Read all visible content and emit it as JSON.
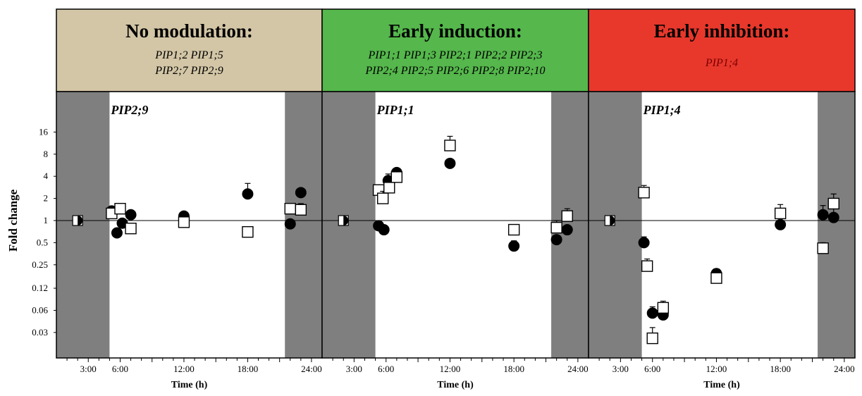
{
  "colors": {
    "no_modulation": "#d3c6a6",
    "early_induction": "#55b74c",
    "early_inhibition": "#e8382c",
    "dark_shade": "#7f7f7f"
  },
  "headers": [
    {
      "title": "No modulation:",
      "gene_lines": [
        "PIP1;2  PIP1;5",
        "PIP2;7  PIP2;9"
      ]
    },
    {
      "title": "Early induction:",
      "gene_lines": [
        "PIP1;1  PIP1;3  PIP2;1  PIP2;2  PIP2;3",
        "PIP2;4  PIP2;5  PIP2;6  PIP2;8  PIP2;10"
      ]
    },
    {
      "title": "Early inhibition:",
      "gene_lines": [
        "PIP1;4"
      ]
    }
  ],
  "chart_data": [
    {
      "type": "scatter",
      "title": "PIP2;9",
      "xlabel": "Time (h)",
      "ylabel": "Fold change",
      "xlim": [
        0,
        25
      ],
      "ylim": [
        0.015,
        32
      ],
      "y_scale": "log2",
      "x_ticks": [
        "3:00",
        "6:00",
        "12:00",
        "18:00",
        "24:00"
      ],
      "y_ticks": [
        "0.03",
        "0.06",
        "0.12",
        "0.25",
        "0.5",
        "1",
        "2",
        "4",
        "8",
        "16"
      ],
      "dark_periods": [
        [
          0,
          5
        ],
        [
          21.5,
          25
        ]
      ],
      "series": [
        {
          "marker": "filled-circle",
          "points": [
            {
              "x": 5.2,
              "y": 1.35
            },
            {
              "x": 5.7,
              "y": 0.68,
              "err": 0.1
            },
            {
              "x": 6.2,
              "y": 0.92,
              "err": 0.1
            },
            {
              "x": 7.0,
              "y": 1.2,
              "err": 0.15
            },
            {
              "x": 12.0,
              "y": 1.15,
              "err": 0.15
            },
            {
              "x": 18.0,
              "y": 2.3,
              "err": 0.9
            },
            {
              "x": 22.0,
              "y": 0.9,
              "err": 0.1
            },
            {
              "x": 23.0,
              "y": 2.4,
              "err": 0.3
            }
          ]
        },
        {
          "marker": "open-square",
          "points": [
            {
              "x": 5.2,
              "y": 1.25
            },
            {
              "x": 6.0,
              "y": 1.45,
              "err": 0.25
            },
            {
              "x": 7.0,
              "y": 0.78,
              "err": 0.1
            },
            {
              "x": 12.0,
              "y": 0.95,
              "err": 0.1
            },
            {
              "x": 18.0,
              "y": 0.7,
              "err": 0.12
            },
            {
              "x": 22.0,
              "y": 1.45,
              "err": 0.2
            },
            {
              "x": 23.0,
              "y": 1.4,
              "err": 0.3
            }
          ]
        },
        {
          "marker": "half-circle",
          "points": [
            {
              "x": 2.0,
              "y": 1.0
            }
          ]
        }
      ]
    },
    {
      "type": "scatter",
      "title": "PIP1;1",
      "xlabel": "Time (h)",
      "ylabel": "Fold change",
      "xlim": [
        0,
        25
      ],
      "ylim": [
        0.015,
        32
      ],
      "y_scale": "log2",
      "x_ticks": [
        "3:00",
        "6:00",
        "12:00",
        "18:00",
        "24:00"
      ],
      "y_ticks": [
        "0.03",
        "0.06",
        "0.12",
        "0.25",
        "0.5",
        "1",
        "2",
        "4",
        "8",
        "16"
      ],
      "dark_periods": [
        [
          0,
          5
        ],
        [
          21.5,
          25
        ]
      ],
      "series": [
        {
          "marker": "filled-circle",
          "points": [
            {
              "x": 5.3,
              "y": 0.85
            },
            {
              "x": 5.8,
              "y": 0.75,
              "err": 0.1
            },
            {
              "x": 6.2,
              "y": 3.5,
              "err": 0.8
            },
            {
              "x": 7.0,
              "y": 4.5,
              "err": 0.6
            },
            {
              "x": 12.0,
              "y": 6.0,
              "err": 0.8
            },
            {
              "x": 18.0,
              "y": 0.45,
              "err": 0.08
            },
            {
              "x": 22.0,
              "y": 0.55,
              "err": 0.08
            },
            {
              "x": 23.0,
              "y": 0.75,
              "err": 0.1
            }
          ]
        },
        {
          "marker": "open-square",
          "points": [
            {
              "x": 5.3,
              "y": 2.6
            },
            {
              "x": 5.7,
              "y": 2.0,
              "err": 0.5
            },
            {
              "x": 6.3,
              "y": 2.8,
              "err": 0.5
            },
            {
              "x": 7.0,
              "y": 3.9,
              "err": 0.6
            },
            {
              "x": 12.0,
              "y": 10.5,
              "err": 3.5
            },
            {
              "x": 18.0,
              "y": 0.75,
              "err": 0.12
            },
            {
              "x": 22.0,
              "y": 0.8,
              "err": 0.2
            },
            {
              "x": 23.0,
              "y": 1.15,
              "err": 0.3
            }
          ]
        },
        {
          "marker": "half-circle",
          "points": [
            {
              "x": 2.0,
              "y": 1.0
            }
          ]
        }
      ]
    },
    {
      "type": "scatter",
      "title": "PIP1;4",
      "xlabel": "Time (h)",
      "ylabel": "Fold change",
      "xlim": [
        0,
        25
      ],
      "ylim": [
        0.015,
        32
      ],
      "y_scale": "log2",
      "x_ticks": [
        "3:00",
        "6:00",
        "12:00",
        "18:00",
        "24:00"
      ],
      "y_ticks": [
        "0.03",
        "0.06",
        "0.12",
        "0.25",
        "0.5",
        "1",
        "2",
        "4",
        "8",
        "16"
      ],
      "dark_periods": [
        [
          0,
          5
        ],
        [
          21.5,
          25
        ]
      ],
      "series": [
        {
          "marker": "filled-circle",
          "points": [
            {
              "x": 5.2,
              "y": 0.5,
              "err": 0.1
            },
            {
              "x": 6.0,
              "y": 0.055,
              "err": 0.012
            },
            {
              "x": 7.0,
              "y": 0.052,
              "err": 0.01
            },
            {
              "x": 12.0,
              "y": 0.19,
              "err": 0.03
            },
            {
              "x": 18.0,
              "y": 0.88,
              "err": 0.2
            },
            {
              "x": 22.0,
              "y": 1.2,
              "err": 0.4
            },
            {
              "x": 23.0,
              "y": 1.1,
              "err": 0.35
            }
          ]
        },
        {
          "marker": "open-square",
          "points": [
            {
              "x": 5.2,
              "y": 2.4,
              "err": 0.6
            },
            {
              "x": 5.5,
              "y": 0.24,
              "err": 0.06
            },
            {
              "x": 6.0,
              "y": 0.025,
              "err": 0.01
            },
            {
              "x": 7.0,
              "y": 0.065,
              "err": 0.015
            },
            {
              "x": 12.0,
              "y": 0.165,
              "err": 0.05
            },
            {
              "x": 18.0,
              "y": 1.25,
              "err": 0.4
            },
            {
              "x": 22.0,
              "y": 0.42,
              "err": 0.08
            },
            {
              "x": 23.0,
              "y": 1.7,
              "err": 0.6
            }
          ]
        },
        {
          "marker": "half-circle",
          "points": [
            {
              "x": 2.0,
              "y": 1.0
            }
          ]
        }
      ]
    }
  ]
}
